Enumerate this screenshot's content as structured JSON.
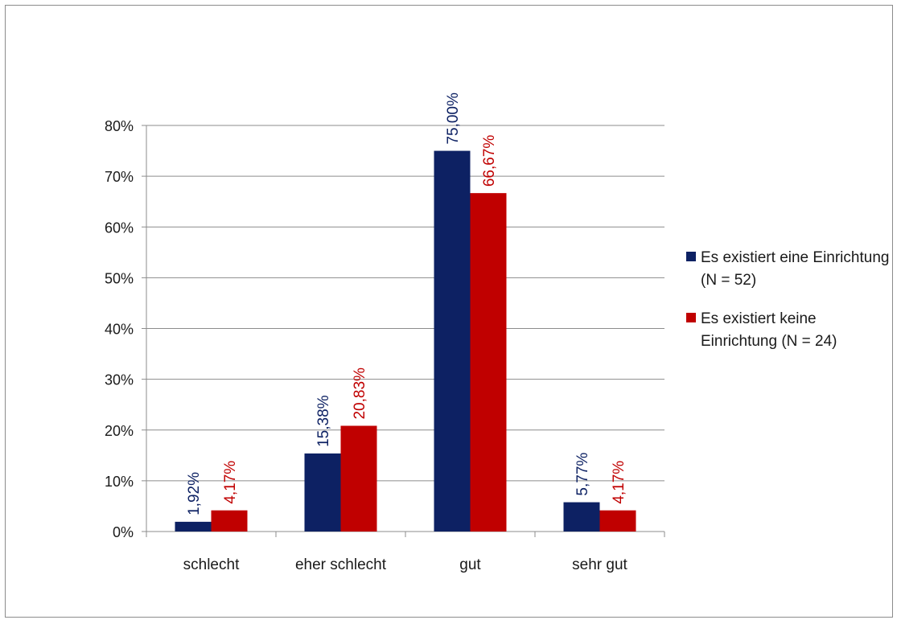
{
  "colors": {
    "series_0": "#0d2163",
    "series_1": "#c00000",
    "grid": "#8c8c8c",
    "axis": "#8c8c8c"
  },
  "chart_data": {
    "type": "bar",
    "categories": [
      "schlecht",
      "eher schlecht",
      "gut",
      "sehr gut"
    ],
    "series": [
      {
        "name": "Es existiert eine Einrichtung (N = 52)",
        "values": [
          1.92,
          15.38,
          75.0,
          5.77
        ],
        "labels": [
          "1,92%",
          "15,38%",
          "75,00%",
          "5,77%"
        ]
      },
      {
        "name": "Es existiert keine Einrichtung (N = 24)",
        "values": [
          4.17,
          20.83,
          66.67,
          4.17
        ],
        "labels": [
          "4,17%",
          "20,83%",
          "66,67%",
          "4,17%"
        ]
      }
    ],
    "y_ticks": [
      "0%",
      "10%",
      "20%",
      "30%",
      "40%",
      "50%",
      "60%",
      "70%",
      "80%"
    ],
    "ylim": [
      0,
      80
    ],
    "grid": true,
    "legend_position": "right",
    "title": "",
    "xlabel": "",
    "ylabel": ""
  }
}
